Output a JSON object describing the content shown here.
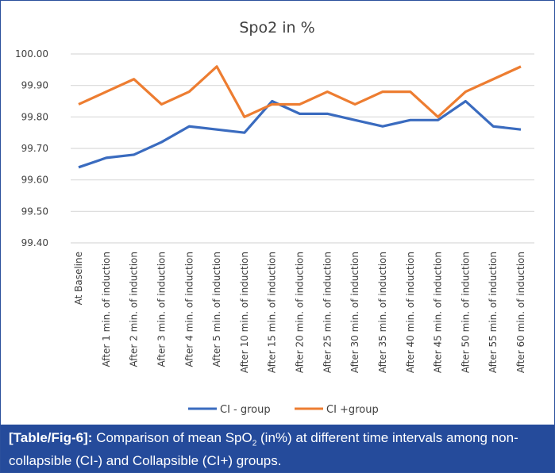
{
  "chart_data": {
    "type": "line",
    "title": "Spo2 in %",
    "xlabel": "",
    "ylabel": "",
    "ylim": [
      99.4,
      100.0
    ],
    "yticks": [
      "99.40",
      "99.50",
      "99.60",
      "99.70",
      "99.80",
      "99.90",
      "100.00"
    ],
    "grid": true,
    "legend_position": "bottom",
    "categories": [
      "At Baseline",
      "After 1 min. of induction",
      "After 2 min. of induction",
      "After 3 min. of induction",
      "After 4 min. of induction",
      "After 5 min. of induction",
      "After 10 min. of induction",
      "After 15 min. of induction",
      "After 20 min. of induction",
      "After 25 min. of induction",
      "After 30 min. of induction",
      "After 35 min. of induction",
      "After 40 min. of induction",
      "After 45 min. of induction",
      "After 50 min. of induction",
      "After 55 min. of induction",
      "After 60 min. of induction"
    ],
    "series": [
      {
        "name": "CI - group",
        "color": "#3a6bbf",
        "values": [
          99.64,
          99.67,
          99.68,
          99.72,
          99.77,
          99.76,
          99.75,
          99.85,
          99.81,
          99.81,
          99.79,
          99.77,
          99.79,
          99.79,
          99.85,
          99.77,
          99.76
        ]
      },
      {
        "name": "CI +group",
        "color": "#ed7d31",
        "values": [
          99.84,
          99.88,
          99.92,
          99.84,
          99.88,
          99.96,
          99.8,
          99.84,
          99.84,
          99.88,
          99.84,
          99.88,
          99.88,
          99.8,
          99.88,
          99.92,
          99.96
        ]
      }
    ]
  },
  "caption": {
    "label": "[Table/Fig-6]:",
    "text_before_sub": " Comparison of mean SpO",
    "sub": "2",
    "text_after_sub": " (in%) at different time intervals among non-collapsible (CI-) and Collapsible (CI+) groups."
  },
  "colors": {
    "caption_bg": "#254b9b",
    "grid": "#d9d9d9"
  }
}
